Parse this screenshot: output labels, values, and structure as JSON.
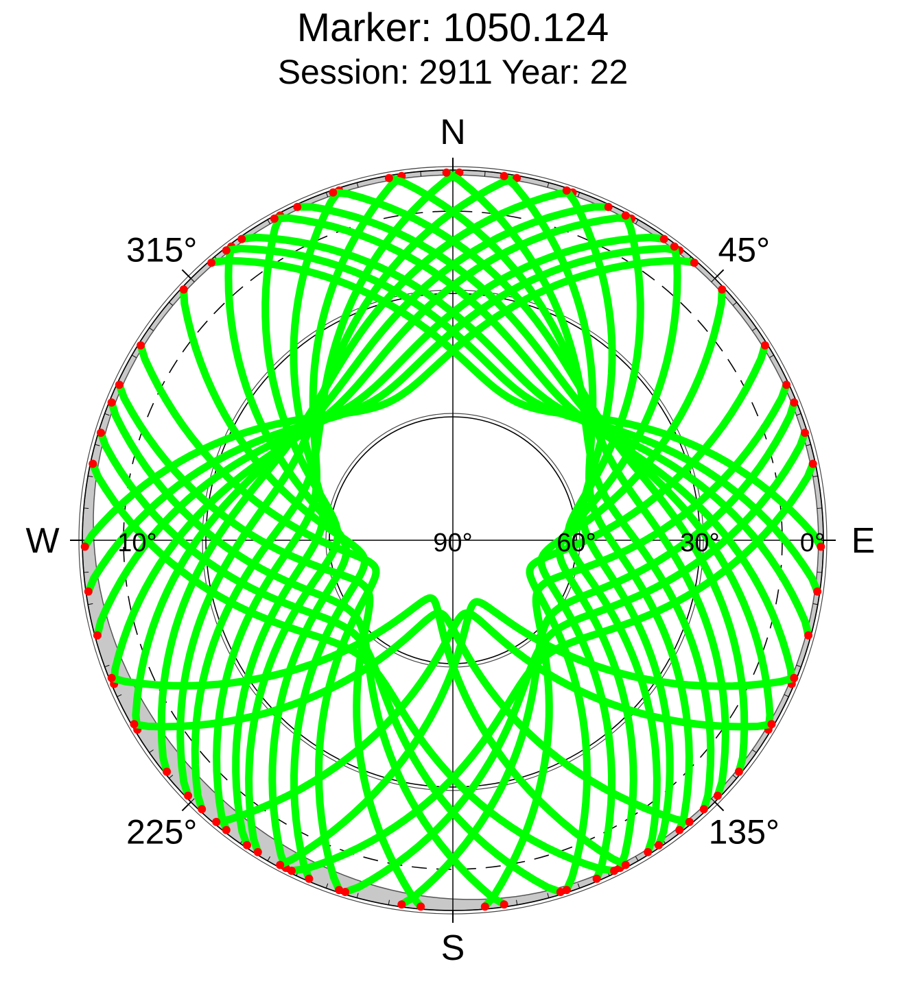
{
  "chart_data": {
    "type": "polar-skyplot",
    "title": "Marker: 1050.124",
    "subtitle": "Session: 2911 Year: 22",
    "directions": {
      "north": "N",
      "south": "S",
      "east": "E",
      "west": "W"
    },
    "azimuth_ticks": [
      {
        "az": 45,
        "label": "45°"
      },
      {
        "az": 135,
        "label": "135°"
      },
      {
        "az": 225,
        "label": "225°"
      },
      {
        "az": 315,
        "label": "315°"
      }
    ],
    "elevation_ticks": [
      {
        "el": 90,
        "label": "90°"
      },
      {
        "el": 60,
        "label": "60°"
      },
      {
        "el": 30,
        "label": "30°"
      },
      {
        "el": 0,
        "label": "0°"
      },
      {
        "el": 10,
        "label": "10°"
      }
    ],
    "elevation_circles": [
      60,
      30,
      0
    ],
    "cutoff_elevation": 10,
    "colors": {
      "track": "#00ff00",
      "low_elev": "#ff0000",
      "mask": "#c8c8c8"
    },
    "tracks": [
      {
        "max_el": 53,
        "az_at_max": 335,
        "span": 66
      },
      {
        "max_el": 51,
        "az_at_max": 330,
        "span": 68
      },
      {
        "max_el": 49,
        "az_at_max": 325,
        "span": 70
      },
      {
        "max_el": 47,
        "az_at_max": 318,
        "span": 71
      },
      {
        "max_el": 45,
        "az_at_max": 312,
        "span": 73
      },
      {
        "max_el": 44,
        "az_at_max": 305,
        "span": 74
      },
      {
        "max_el": 47,
        "az_at_max": 298,
        "span": 72
      },
      {
        "max_el": 52,
        "az_at_max": 292,
        "span": 69
      },
      {
        "max_el": 55,
        "az_at_max": 285,
        "span": 67
      },
      {
        "max_el": 58,
        "az_at_max": 278,
        "span": 64
      },
      {
        "max_el": 62,
        "az_at_max": 272,
        "span": 60
      },
      {
        "max_el": 64,
        "az_at_max": 265,
        "span": 58
      },
      {
        "max_el": 53,
        "az_at_max": 25,
        "span": 66
      },
      {
        "max_el": 51,
        "az_at_max": 30,
        "span": 68
      },
      {
        "max_el": 49,
        "az_at_max": 35,
        "span": 70
      },
      {
        "max_el": 47,
        "az_at_max": 42,
        "span": 71
      },
      {
        "max_el": 45,
        "az_at_max": 48,
        "span": 73
      },
      {
        "max_el": 44,
        "az_at_max": 55,
        "span": 74
      },
      {
        "max_el": 47,
        "az_at_max": 62,
        "span": 72
      },
      {
        "max_el": 52,
        "az_at_max": 68,
        "span": 69
      },
      {
        "max_el": 55,
        "az_at_max": 75,
        "span": 67
      },
      {
        "max_el": 58,
        "az_at_max": 82,
        "span": 64
      },
      {
        "max_el": 62,
        "az_at_max": 88,
        "span": 60
      },
      {
        "max_el": 64,
        "az_at_max": 95,
        "span": 58
      },
      {
        "max_el": 68,
        "az_at_max": 258,
        "span": 55
      },
      {
        "max_el": 70,
        "az_at_max": 250,
        "span": 52
      },
      {
        "max_el": 66,
        "az_at_max": 240,
        "span": 55
      },
      {
        "max_el": 60,
        "az_at_max": 232,
        "span": 60
      },
      {
        "max_el": 57,
        "az_at_max": 225,
        "span": 62
      },
      {
        "max_el": 54,
        "az_at_max": 218,
        "span": 64
      },
      {
        "max_el": 68,
        "az_at_max": 102,
        "span": 55
      },
      {
        "max_el": 70,
        "az_at_max": 110,
        "span": 52
      },
      {
        "max_el": 66,
        "az_at_max": 120,
        "span": 55
      },
      {
        "max_el": 60,
        "az_at_max": 128,
        "span": 60
      },
      {
        "max_el": 57,
        "az_at_max": 135,
        "span": 62
      },
      {
        "max_el": 54,
        "az_at_max": 142,
        "span": 64
      },
      {
        "max_el": 75,
        "az_at_max": 200,
        "span": 48
      },
      {
        "max_el": 72,
        "az_at_max": 190,
        "span": 50
      },
      {
        "max_el": 74,
        "az_at_max": 160,
        "span": 48
      },
      {
        "max_el": 72,
        "az_at_max": 170,
        "span": 50
      }
    ]
  }
}
